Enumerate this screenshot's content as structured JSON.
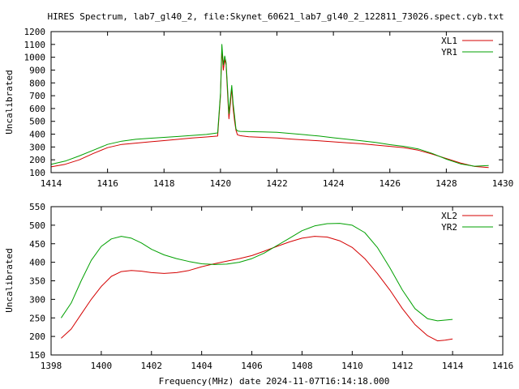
{
  "title": "HIRES Spectrum, lab7_gl40_2, file:Skynet_60621_lab7_gl40_2_122811_73026.spect.cyb.txt",
  "xlabel": "Frequency(MHz) date 2024-11-07T16:14:18.000",
  "colors": {
    "red": "#d40000",
    "green": "#00a000"
  },
  "chart_data": [
    {
      "type": "line",
      "ylabel": "Uncalibrated",
      "xlim": [
        1414,
        1430
      ],
      "ylim": [
        100,
        1200
      ],
      "xticks": [
        1414,
        1416,
        1418,
        1420,
        1422,
        1424,
        1426,
        1428,
        1430
      ],
      "yticks": [
        100,
        200,
        300,
        400,
        500,
        600,
        700,
        800,
        900,
        1000,
        1100,
        1200
      ],
      "legend": "top-right",
      "series": [
        {
          "name": "XL1",
          "color": "#d40000",
          "x": [
            1414.0,
            1414.5,
            1415.0,
            1415.5,
            1416.0,
            1416.5,
            1417.0,
            1417.5,
            1418.0,
            1418.5,
            1419.0,
            1419.5,
            1419.9,
            1420.0,
            1420.05,
            1420.1,
            1420.15,
            1420.2,
            1420.25,
            1420.3,
            1420.35,
            1420.4,
            1420.45,
            1420.5,
            1420.55,
            1420.6,
            1420.7,
            1421.0,
            1421.5,
            1422.0,
            1422.5,
            1423.0,
            1423.5,
            1424.0,
            1424.5,
            1425.0,
            1425.5,
            1426.0,
            1426.5,
            1427.0,
            1427.5,
            1428.0,
            1428.5,
            1429.0,
            1429.5
          ],
          "values": [
            145,
            165,
            200,
            250,
            295,
            320,
            330,
            340,
            350,
            360,
            370,
            378,
            385,
            700,
            1060,
            900,
            980,
            940,
            720,
            520,
            640,
            760,
            600,
            500,
            430,
            395,
            388,
            380,
            375,
            370,
            362,
            355,
            348,
            340,
            332,
            325,
            315,
            305,
            295,
            275,
            245,
            210,
            175,
            148,
            140
          ]
        },
        {
          "name": "YR1",
          "color": "#00a000",
          "x": [
            1414.0,
            1414.5,
            1415.0,
            1415.5,
            1416.0,
            1416.5,
            1417.0,
            1417.5,
            1418.0,
            1418.5,
            1419.0,
            1419.5,
            1419.9,
            1420.0,
            1420.05,
            1420.1,
            1420.15,
            1420.2,
            1420.25,
            1420.3,
            1420.35,
            1420.4,
            1420.45,
            1420.5,
            1420.55,
            1420.6,
            1420.7,
            1421.0,
            1421.5,
            1422.0,
            1422.5,
            1423.0,
            1423.5,
            1424.0,
            1424.5,
            1425.0,
            1425.5,
            1426.0,
            1426.5,
            1427.0,
            1427.5,
            1428.0,
            1428.5,
            1429.0,
            1429.5
          ],
          "values": [
            165,
            190,
            230,
            275,
            320,
            345,
            360,
            368,
            375,
            382,
            390,
            398,
            410,
            720,
            1100,
            940,
            1010,
            960,
            760,
            560,
            680,
            780,
            640,
            540,
            440,
            425,
            422,
            420,
            418,
            415,
            405,
            395,
            385,
            372,
            360,
            348,
            335,
            318,
            305,
            285,
            250,
            205,
            168,
            150,
            155
          ]
        }
      ]
    },
    {
      "type": "line",
      "ylabel": "Uncalibrated",
      "xlim": [
        1398,
        1416
      ],
      "ylim": [
        150,
        550
      ],
      "xticks": [
        1398,
        1400,
        1402,
        1404,
        1406,
        1408,
        1410,
        1412,
        1414,
        1416
      ],
      "yticks": [
        150,
        200,
        250,
        300,
        350,
        400,
        450,
        500,
        550
      ],
      "legend": "top-right",
      "series": [
        {
          "name": "XL2",
          "color": "#d40000",
          "x": [
            1398.4,
            1398.8,
            1399.2,
            1399.6,
            1400.0,
            1400.4,
            1400.8,
            1401.2,
            1401.6,
            1402.0,
            1402.5,
            1403.0,
            1403.5,
            1404.0,
            1404.5,
            1405.0,
            1405.5,
            1406.0,
            1406.5,
            1407.0,
            1407.5,
            1408.0,
            1408.5,
            1409.0,
            1409.5,
            1410.0,
            1410.5,
            1411.0,
            1411.5,
            1412.0,
            1412.5,
            1413.0,
            1413.4,
            1413.7,
            1414.0
          ],
          "values": [
            195,
            220,
            260,
            300,
            335,
            362,
            375,
            378,
            376,
            372,
            370,
            372,
            378,
            388,
            396,
            403,
            410,
            418,
            430,
            443,
            455,
            465,
            470,
            468,
            458,
            440,
            410,
            370,
            325,
            275,
            232,
            202,
            188,
            190,
            193
          ]
        },
        {
          "name": "YR2",
          "color": "#00a000",
          "x": [
            1398.4,
            1398.8,
            1399.2,
            1399.6,
            1400.0,
            1400.4,
            1400.8,
            1401.2,
            1401.6,
            1402.0,
            1402.5,
            1403.0,
            1403.5,
            1404.0,
            1404.5,
            1405.0,
            1405.5,
            1406.0,
            1406.5,
            1407.0,
            1407.5,
            1408.0,
            1408.5,
            1409.0,
            1409.5,
            1410.0,
            1410.5,
            1411.0,
            1411.5,
            1412.0,
            1412.5,
            1413.0,
            1413.4,
            1413.7,
            1414.0
          ],
          "values": [
            250,
            290,
            350,
            405,
            443,
            463,
            470,
            465,
            452,
            435,
            420,
            410,
            402,
            396,
            394,
            395,
            400,
            410,
            425,
            445,
            465,
            485,
            498,
            504,
            505,
            500,
            480,
            440,
            385,
            325,
            275,
            248,
            242,
            244,
            246
          ]
        }
      ]
    }
  ]
}
